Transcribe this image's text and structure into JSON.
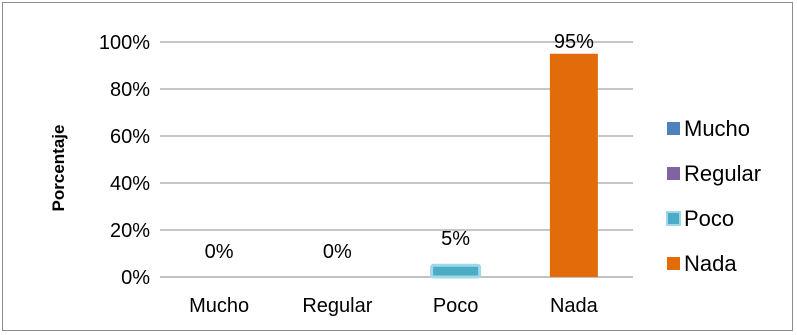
{
  "chart_data": {
    "type": "bar",
    "title": "",
    "xlabel": "",
    "ylabel": "Porcentaje",
    "categories": [
      "Mucho",
      "Regular",
      "Poco",
      "Nada"
    ],
    "values": [
      0,
      0,
      5,
      95
    ],
    "data_labels": [
      "0%",
      "0%",
      "5%",
      "95%"
    ],
    "colors": [
      "#4F81BD",
      "#8064A2",
      "#4BACC6",
      "#E36C0A"
    ],
    "ylim": [
      0,
      100
    ],
    "yticks": [
      0,
      20,
      40,
      60,
      80,
      100
    ],
    "ytick_labels": [
      "0%",
      "20%",
      "40%",
      "60%",
      "80%",
      "100%"
    ],
    "grid": true,
    "legend": {
      "position": "right",
      "entries": [
        "Mucho",
        "Regular",
        "Poco",
        "Nada"
      ]
    }
  }
}
